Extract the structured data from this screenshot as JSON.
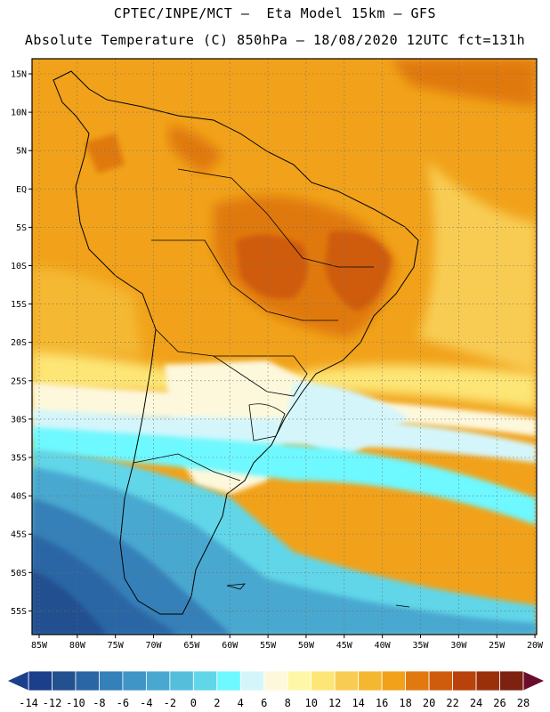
{
  "header": {
    "line1": "CPTEC/INPE/MCT –  Eta Model 15km – GFS",
    "line2": "Absolute Temperature (C) 850hPa – 18/08/2020 12UTC fct=131h"
  },
  "map": {
    "lat_labels": [
      "15N",
      "10N",
      "5N",
      "EQ",
      "5S",
      "10S",
      "15S",
      "20S",
      "25S",
      "30S",
      "35S",
      "40S",
      "45S",
      "50S",
      "55S"
    ],
    "lon_labels": [
      "85W",
      "80W",
      "75W",
      "70W",
      "65W",
      "60W",
      "55W",
      "50W",
      "45W",
      "40W",
      "35W",
      "30W",
      "25W",
      "20W"
    ],
    "grid": true,
    "region": "South America"
  },
  "colorbar": {
    "ticks": [
      "-14",
      "-12",
      "-10",
      "-8",
      "-6",
      "-4",
      "-2",
      "0",
      "2",
      "4",
      "6",
      "8",
      "10",
      "12",
      "14",
      "16",
      "18",
      "20",
      "22",
      "24",
      "26",
      "28"
    ],
    "colors": [
      "#1c3f8c",
      "#23508f",
      "#2a66a5",
      "#3580b8",
      "#3e95c6",
      "#48a8d0",
      "#55bfdb",
      "#60d6e8",
      "#6ef8ff",
      "#d4f6fb",
      "#fdf8dc",
      "#fff7a8",
      "#fde676",
      "#f8cc52",
      "#f4b830",
      "#f1a21a",
      "#e0790f",
      "#cf5c0c",
      "#b8420a",
      "#9a300a",
      "#7d2210"
    ]
  }
}
